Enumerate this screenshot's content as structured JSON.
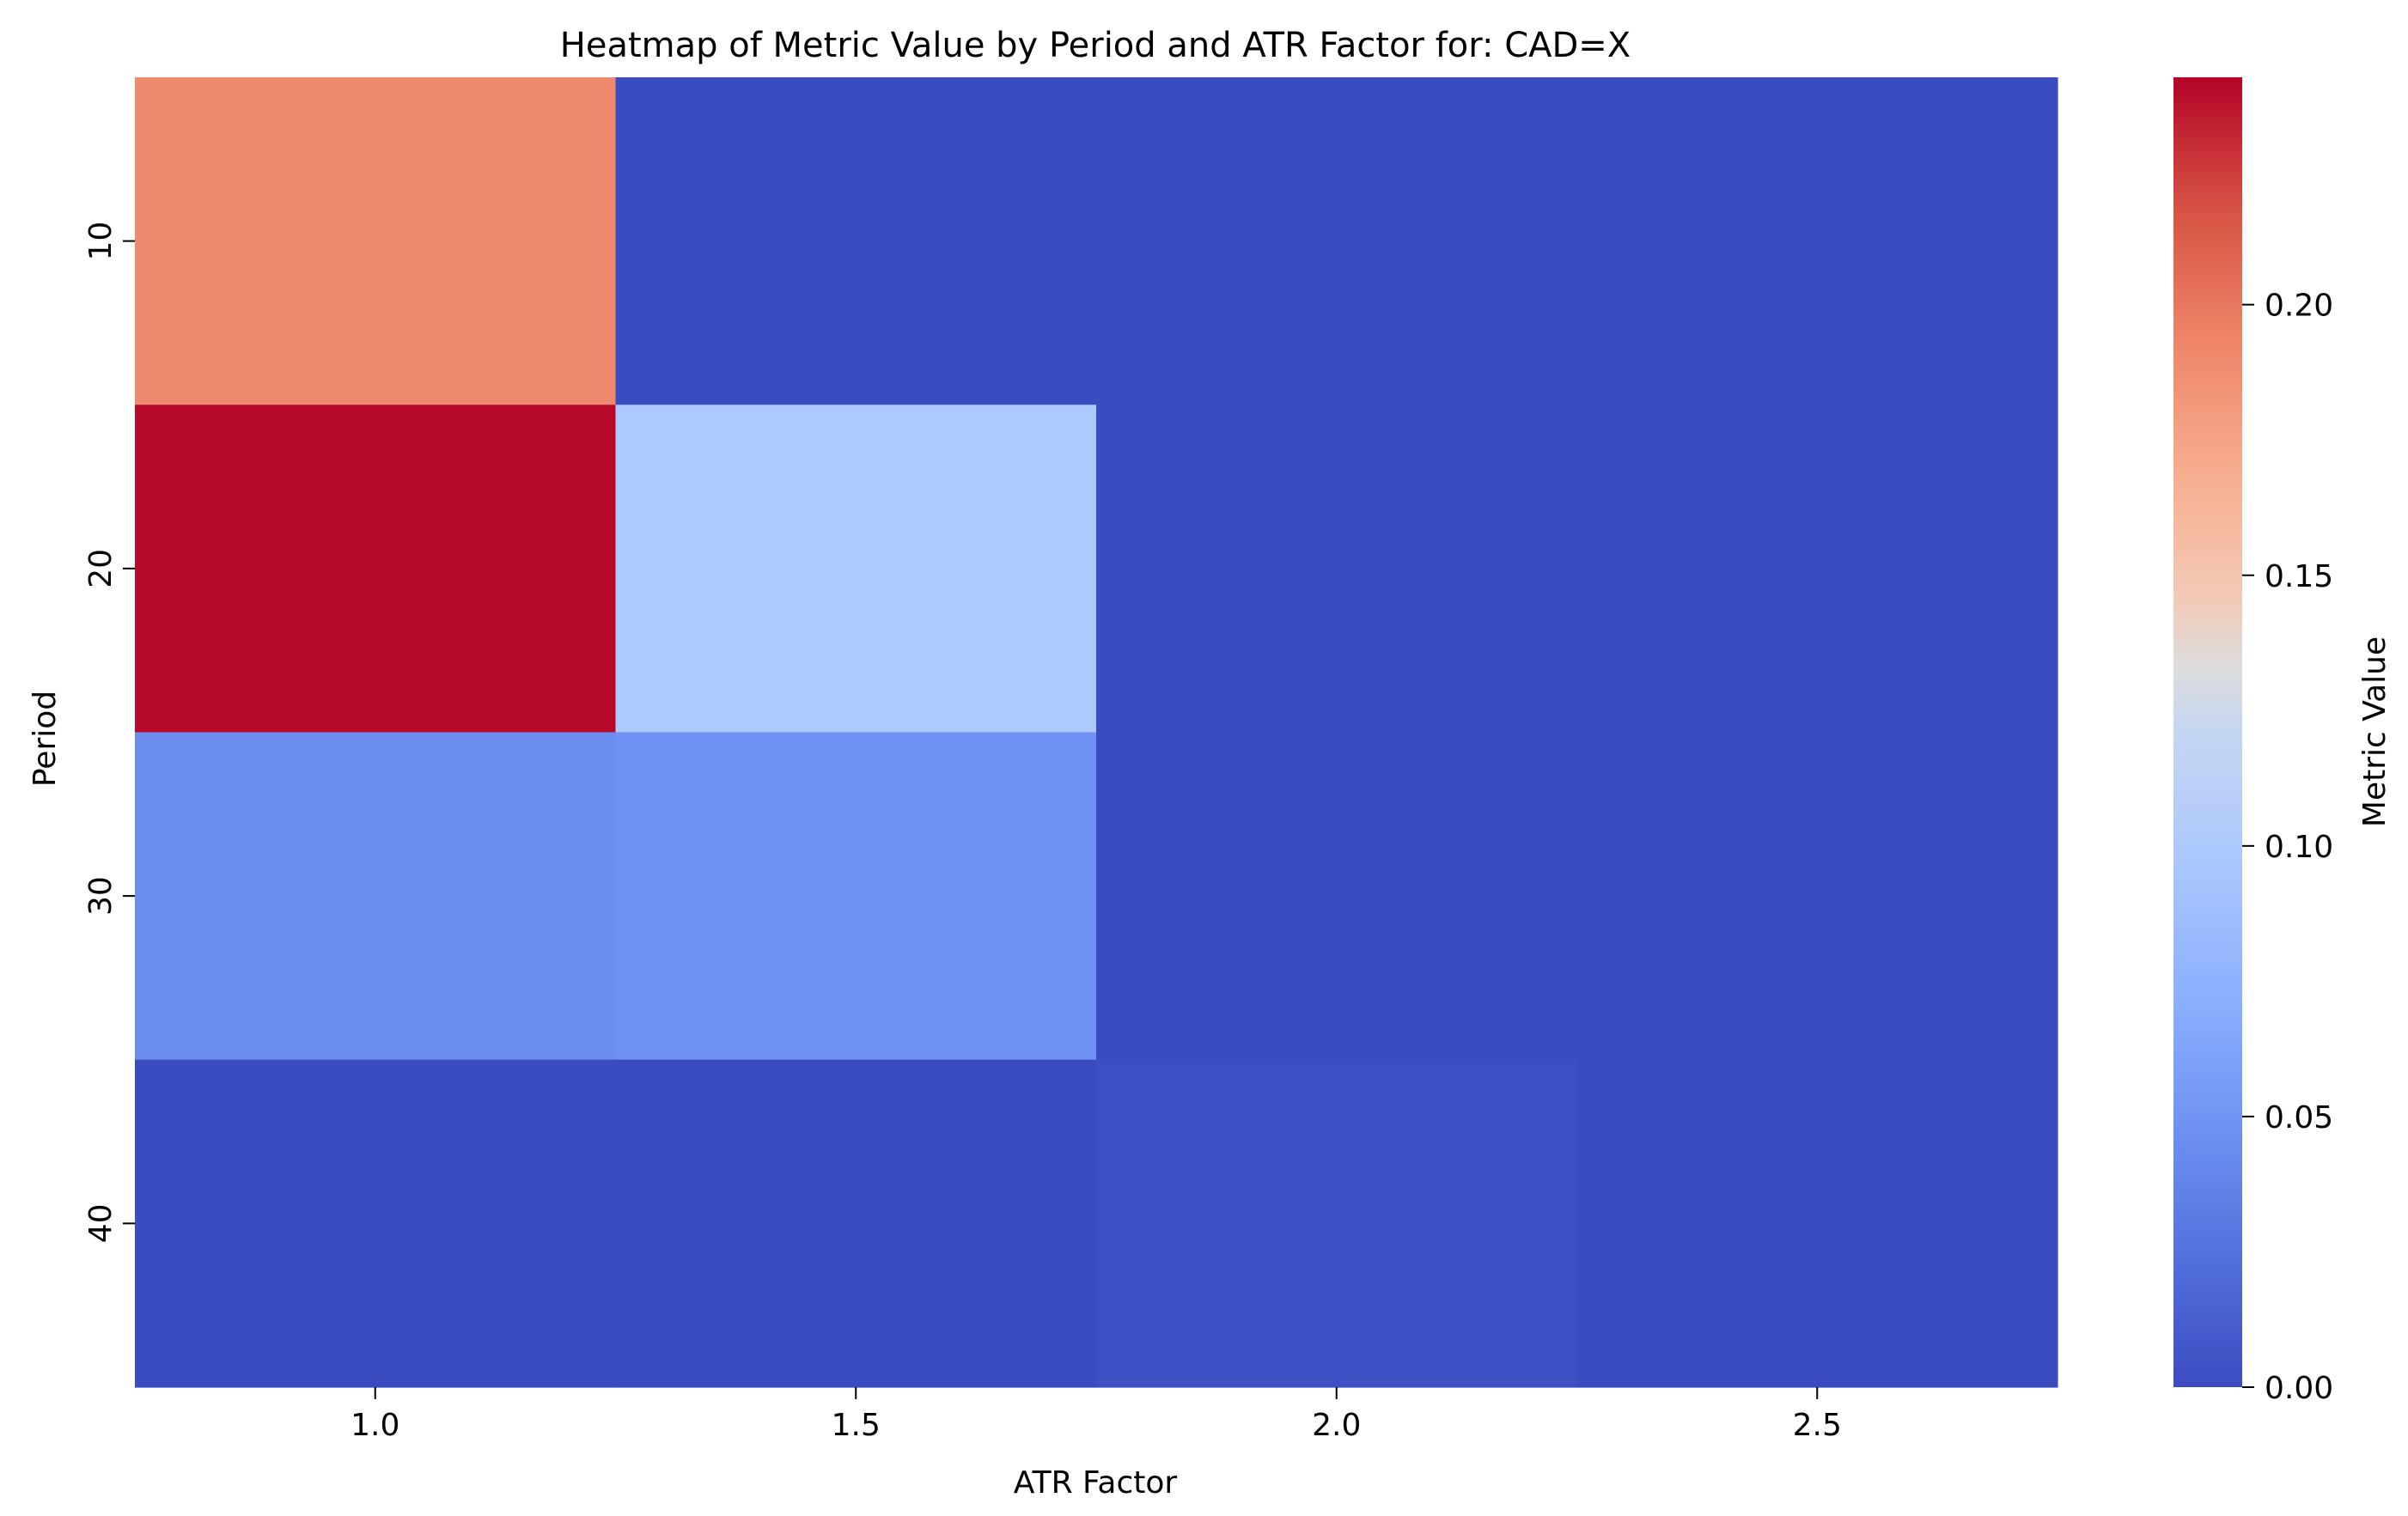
{
  "chart_data": {
    "type": "heatmap",
    "title": "Heatmap of Metric Value by Period and ATR Factor for: CAD=X",
    "xlabel": "ATR Factor",
    "ylabel": "Period",
    "x": [
      "1.0",
      "1.5",
      "2.0",
      "2.5"
    ],
    "y": [
      "10",
      "20",
      "30",
      "40"
    ],
    "values": [
      [
        0.19,
        0.0,
        0.0,
        0.0
      ],
      [
        0.24,
        0.1,
        0.0,
        0.0
      ],
      [
        0.045,
        0.048,
        0.0,
        0.0
      ],
      [
        0.0,
        0.0,
        0.002,
        0.0
      ]
    ],
    "colorbar": {
      "label": "Metric Value",
      "min": 0.0,
      "max": 0.242,
      "ticks": [
        "0.00",
        "0.05",
        "0.10",
        "0.15",
        "0.20"
      ],
      "colormap": "coolwarm"
    }
  }
}
